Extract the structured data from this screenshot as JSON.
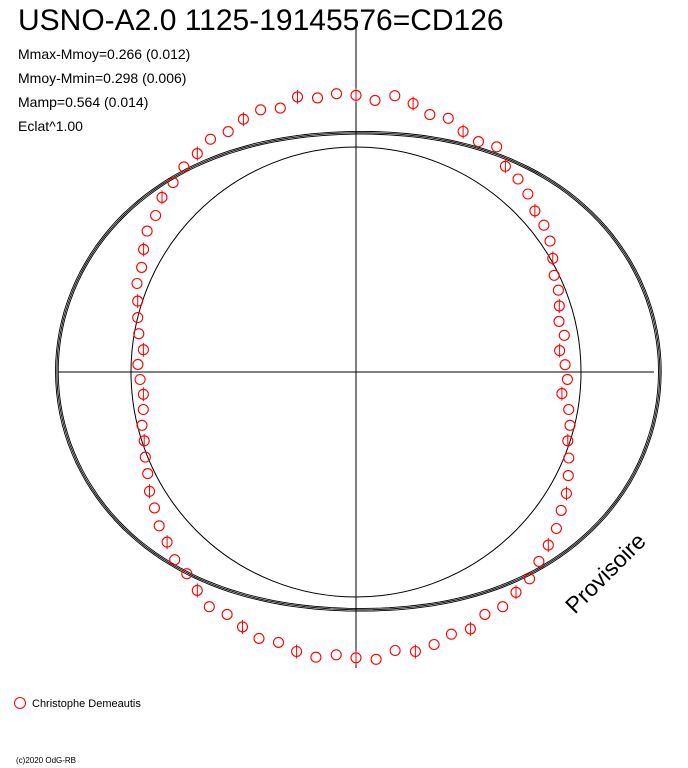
{
  "chart": {
    "title": "USNO-A2.0 1125-19145576=CD126",
    "stats": [
      "Mmax-Mmoy=0.266 (0.012)",
      "Mmoy-Mmin=0.298 (0.006)",
      "Mamp=0.564 (0.014)",
      "Eclat^1.00"
    ],
    "legend_label": "Christophe Demeautis",
    "watermark": "Provisoire",
    "copyright": "(c)2020 OdG-RB"
  },
  "chart_data": {
    "type": "scatter",
    "projection": "polar",
    "title": "USNO-A2.0 1125-19145576=CD126",
    "axes": {
      "visible": true,
      "tick_labels": false
    },
    "reference_circle_radius": 1.0,
    "radius_range": [
      0,
      1.41
    ],
    "model": {
      "description": "two-harmonic fit",
      "r0": 1.2,
      "a1": 0.055,
      "a2": 0.14,
      "phase1": 0.3,
      "phase2": 0.0
    },
    "series": [
      {
        "name": "Christophe Demeautis",
        "color": "#ff0000",
        "marker": "open-circle",
        "points_phase_deg": [
          -90,
          -86,
          -82,
          -78,
          -74,
          -70,
          -66,
          -62,
          -58,
          -54,
          -50,
          -46,
          -42,
          -38,
          -34,
          -30,
          -26,
          -22,
          -18,
          -14,
          -10,
          -6,
          -2,
          2,
          6,
          10,
          14,
          18,
          22,
          26,
          30,
          34,
          38,
          42,
          46,
          50,
          54,
          58,
          62,
          66,
          70,
          74,
          78,
          82,
          86,
          90,
          94,
          98,
          102,
          106,
          110,
          114,
          118,
          122,
          126,
          130,
          134,
          138,
          142,
          146,
          150,
          154,
          158,
          162,
          166,
          170,
          174,
          178,
          182,
          186,
          190,
          194,
          198,
          202,
          206,
          210,
          214,
          218,
          222,
          226,
          230,
          234,
          238,
          242,
          246,
          250,
          254,
          258,
          262,
          266
        ],
        "points_radius": [
          1.23,
          1.21,
          1.24,
          1.22,
          1.19,
          1.2,
          1.17,
          1.16,
          1.18,
          1.13,
          1.12,
          1.1,
          1.07,
          1.06,
          1.04,
          1.01,
          0.98,
          0.97,
          0.95,
          0.93,
          0.94,
          0.91,
          0.93,
          0.94,
          0.92,
          0.96,
          0.98,
          0.99,
          1.02,
          1.05,
          1.08,
          1.1,
          1.13,
          1.15,
          1.17,
          1.2,
          1.21,
          1.23,
          1.22,
          1.25,
          1.24,
          1.26,
          1.27,
          1.25,
          1.28,
          1.27,
          1.26,
          1.28,
          1.27,
          1.25,
          1.26,
          1.24,
          1.22,
          1.23,
          1.2,
          1.17,
          1.16,
          1.13,
          1.11,
          1.08,
          1.06,
          1.03,
          1.01,
          0.99,
          0.98,
          0.96,
          0.95,
          0.96,
          0.97,
          0.95,
          0.98,
          1.0,
          1.02,
          1.05,
          1.06,
          1.09,
          1.12,
          1.13,
          1.16,
          1.17,
          1.19,
          1.2,
          1.22,
          1.21,
          1.23,
          1.24,
          1.22,
          1.25,
          1.23,
          1.24
        ]
      }
    ]
  }
}
